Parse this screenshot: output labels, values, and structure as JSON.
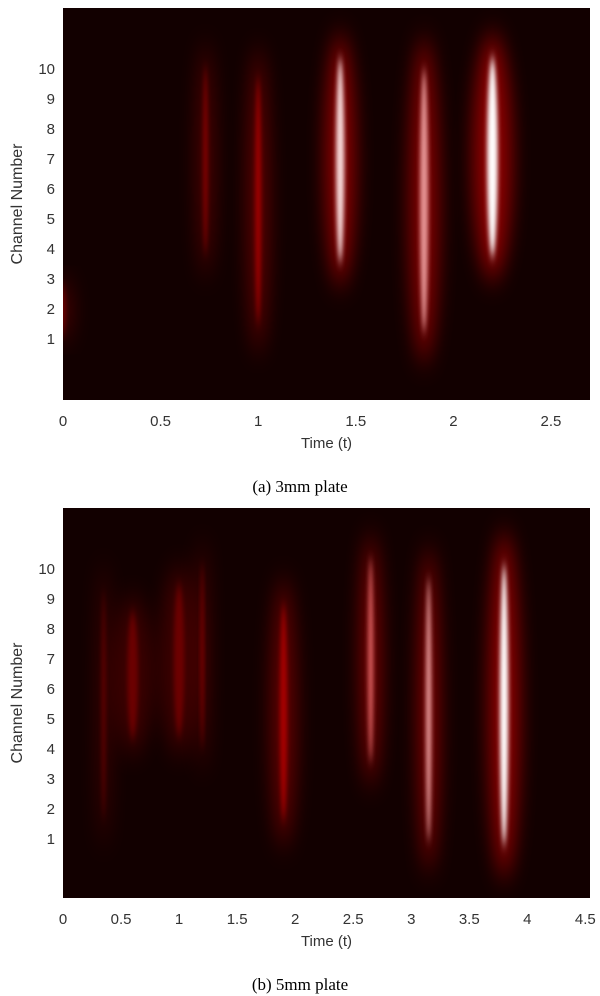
{
  "chart_data": [
    {
      "type": "heatmap",
      "xlabel": "Time (t)",
      "ylabel": "Channel Number",
      "caption": "(a) 3mm plate",
      "xlim": [
        0,
        2.7
      ],
      "ylim": [
        -1,
        12.07
      ],
      "xticks": [
        0,
        0.5,
        1,
        1.5,
        2,
        2.5
      ],
      "yticks": [
        1,
        2,
        3,
        4,
        5,
        6,
        7,
        8,
        9,
        10
      ],
      "colormap": [
        "#120000",
        "#e00000",
        "#ffffff"
      ],
      "streaks": [
        {
          "t": 0.0,
          "y0": 1,
          "y1": 3,
          "intensity": 0.15,
          "width": 0.05
        },
        {
          "t": 0.73,
          "y0": 3.3,
          "y1": 10.7,
          "intensity": 0.3,
          "width": 0.04
        },
        {
          "t": 1.0,
          "y0": 0.8,
          "y1": 10.5,
          "intensity": 0.45,
          "width": 0.05
        },
        {
          "t": 1.42,
          "y0": 3,
          "y1": 11,
          "intensity": 0.95,
          "width": 0.07
        },
        {
          "t": 1.85,
          "y0": 0.5,
          "y1": 10.8,
          "intensity": 0.85,
          "width": 0.07
        },
        {
          "t": 2.2,
          "y0": 3.2,
          "y1": 11,
          "intensity": 1.0,
          "width": 0.09
        }
      ]
    },
    {
      "type": "heatmap",
      "xlabel": "Time (t)",
      "ylabel": "Channel Number",
      "caption": "(b) 5mm plate",
      "xlim": [
        0,
        4.54
      ],
      "ylim": [
        -0.93,
        12.07
      ],
      "xticks": [
        0,
        0.5,
        1,
        1.5,
        2,
        2.5,
        3,
        3.5,
        4,
        4.5
      ],
      "yticks": [
        1,
        2,
        3,
        4,
        5,
        6,
        7,
        8,
        9,
        10
      ],
      "colormap": [
        "#120000",
        "#e00000",
        "#ffffff"
      ],
      "streaks": [
        {
          "t": 0.35,
          "y0": 1,
          "y1": 10,
          "intensity": 0.15,
          "width": 0.05
        },
        {
          "t": 0.6,
          "y0": 4,
          "y1": 9,
          "intensity": 0.12,
          "width": 0.15
        },
        {
          "t": 1.0,
          "y0": 4,
          "y1": 10,
          "intensity": 0.12,
          "width": 0.15
        },
        {
          "t": 1.2,
          "y0": 3.5,
          "y1": 10.8,
          "intensity": 0.35,
          "width": 0.04
        },
        {
          "t": 1.9,
          "y0": 1,
          "y1": 9.5,
          "intensity": 0.5,
          "width": 0.1
        },
        {
          "t": 2.65,
          "y0": 3,
          "y1": 11,
          "intensity": 0.75,
          "width": 0.08
        },
        {
          "t": 3.15,
          "y0": 0.2,
          "y1": 10.5,
          "intensity": 0.85,
          "width": 0.08
        },
        {
          "t": 3.8,
          "y0": 0,
          "y1": 11,
          "intensity": 1.0,
          "width": 0.12
        }
      ]
    }
  ]
}
